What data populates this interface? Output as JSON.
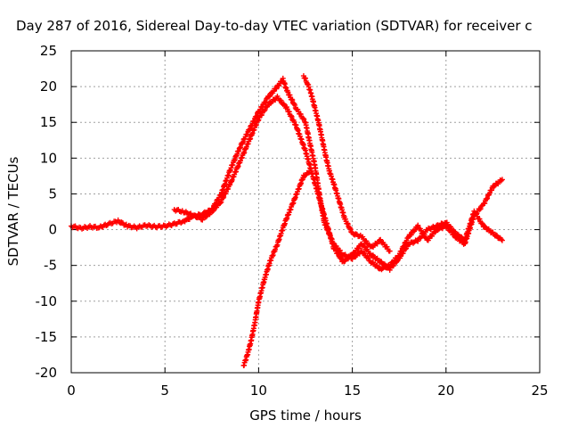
{
  "chart_data": {
    "type": "scatter",
    "title": "Day 287 of 2016, Sidereal Day-to-day VTEC variation (SDTVAR) for receiver c",
    "xlabel": "GPS time / hours",
    "ylabel": "SDTVAR / TECUs",
    "xlim": [
      0,
      25
    ],
    "ylim": [
      -20,
      25
    ],
    "xticks": [
      "0",
      "5",
      "10",
      "15",
      "20",
      "25"
    ],
    "yticks": [
      "25",
      "20",
      "15",
      "10",
      "5",
      "0",
      "-5",
      "-10",
      "-15",
      "-20"
    ],
    "grid": true,
    "marker": "plus",
    "color": "#ff0000",
    "series": [
      {
        "points": [
          [
            0.0,
            0.5
          ],
          [
            0.5,
            0.2
          ],
          [
            1.0,
            0.4
          ],
          [
            1.5,
            0.3
          ],
          [
            2.0,
            0.8
          ],
          [
            2.5,
            1.2
          ],
          [
            3.0,
            0.5
          ],
          [
            3.5,
            0.3
          ],
          [
            4.0,
            0.6
          ],
          [
            4.5,
            0.4
          ],
          [
            5.0,
            0.5
          ],
          [
            5.5,
            0.8
          ],
          [
            6.0,
            1.2
          ],
          [
            6.5,
            1.8
          ],
          [
            7.0,
            2.2
          ],
          [
            7.5,
            2.8
          ],
          [
            8.0,
            5.0
          ],
          [
            8.5,
            8.5
          ],
          [
            9.0,
            11.5
          ],
          [
            9.5,
            14.0
          ],
          [
            10.0,
            16.5
          ],
          [
            10.5,
            18.5
          ],
          [
            11.0,
            20.0
          ],
          [
            11.3,
            21.0
          ],
          [
            11.5,
            19.5
          ],
          [
            12.0,
            17.0
          ],
          [
            12.5,
            15.0
          ],
          [
            12.7,
            12.5
          ],
          [
            13.0,
            9.0
          ],
          [
            13.3,
            4.0
          ],
          [
            13.5,
            1.0
          ],
          [
            14.0,
            -2.0
          ],
          [
            14.5,
            -3.5
          ],
          [
            15.0,
            -4.0
          ],
          [
            15.5,
            -3.0
          ],
          [
            16.0,
            -4.5
          ],
          [
            16.5,
            -5.5
          ],
          [
            17.0,
            -5.0
          ],
          [
            17.5,
            -3.5
          ],
          [
            18.0,
            -1.0
          ],
          [
            18.5,
            0.5
          ],
          [
            19.0,
            -1.5
          ],
          [
            19.5,
            0.0
          ],
          [
            20.0,
            0.5
          ],
          [
            20.5,
            -1.0
          ],
          [
            21.0,
            -2.0
          ],
          [
            21.5,
            2.0
          ],
          [
            22.0,
            3.5
          ],
          [
            22.5,
            6.0
          ],
          [
            23.0,
            7.0
          ]
        ]
      },
      {
        "points": [
          [
            5.5,
            2.8
          ],
          [
            6.0,
            2.5
          ],
          [
            6.5,
            2.0
          ],
          [
            7.0,
            1.5
          ],
          [
            7.5,
            2.5
          ],
          [
            8.0,
            4.0
          ],
          [
            8.5,
            6.5
          ],
          [
            9.0,
            9.5
          ],
          [
            9.5,
            12.5
          ],
          [
            10.0,
            15.5
          ],
          [
            10.5,
            17.5
          ],
          [
            11.0,
            18.5
          ],
          [
            11.5,
            17.0
          ],
          [
            12.0,
            14.5
          ],
          [
            12.5,
            11.0
          ],
          [
            13.0,
            6.5
          ],
          [
            13.5,
            2.0
          ],
          [
            14.0,
            -2.5
          ],
          [
            14.5,
            -4.5
          ],
          [
            15.0,
            -3.5
          ],
          [
            15.5,
            -2.0
          ],
          [
            16.0,
            -3.5
          ],
          [
            16.5,
            -4.5
          ],
          [
            17.0,
            -5.5
          ],
          [
            17.5,
            -4.0
          ],
          [
            18.0,
            -2.0
          ],
          [
            18.5,
            -1.5
          ],
          [
            19.0,
            0.0
          ],
          [
            19.5,
            0.5
          ],
          [
            20.0,
            1.0
          ],
          [
            20.5,
            -0.5
          ],
          [
            21.0,
            -1.5
          ],
          [
            21.5,
            2.5
          ],
          [
            22.0,
            0.5
          ],
          [
            22.5,
            -0.5
          ],
          [
            23.0,
            -1.5
          ]
        ]
      },
      {
        "points": [
          [
            9.2,
            -19.0
          ],
          [
            9.4,
            -17.5
          ],
          [
            9.6,
            -15.5
          ],
          [
            9.8,
            -13.0
          ],
          [
            10.0,
            -10.0
          ],
          [
            10.3,
            -7.0
          ],
          [
            10.6,
            -4.5
          ],
          [
            11.0,
            -2.0
          ],
          [
            11.4,
            1.0
          ],
          [
            11.8,
            3.5
          ],
          [
            12.1,
            5.5
          ],
          [
            12.4,
            7.5
          ],
          [
            12.7,
            8.0
          ]
        ]
      },
      {
        "points": [
          [
            12.4,
            21.5
          ],
          [
            12.6,
            20.5
          ],
          [
            12.8,
            19.0
          ],
          [
            13.0,
            17.0
          ],
          [
            13.2,
            15.0
          ],
          [
            13.4,
            12.5
          ],
          [
            13.6,
            10.0
          ],
          [
            13.8,
            8.0
          ],
          [
            14.0,
            6.5
          ],
          [
            14.3,
            4.0
          ],
          [
            14.6,
            1.5
          ],
          [
            15.0,
            -0.5
          ],
          [
            15.5,
            -1.0
          ],
          [
            16.0,
            -2.5
          ],
          [
            16.5,
            -1.5
          ],
          [
            17.0,
            -3.0
          ]
        ]
      }
    ]
  }
}
